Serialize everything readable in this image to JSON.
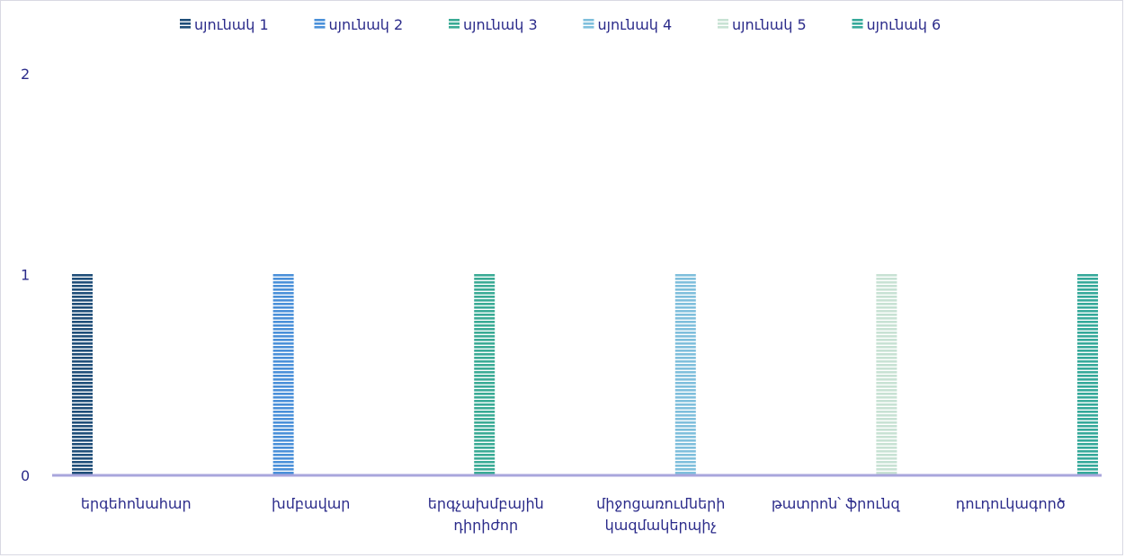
{
  "chart_data": {
    "type": "bar",
    "categories": [
      [
        "երգեհոնահար"
      ],
      [
        "խմբավար"
      ],
      [
        "երգչախմբային",
        "դիրիժոր"
      ],
      [
        "միջոցառումների",
        "կազմակերպիչ"
      ],
      [
        "թատրոն՝ ֆրունզ"
      ],
      [
        "դուդուկագործ"
      ]
    ],
    "series": [
      {
        "name": "սյունակ 1",
        "values": [
          1,
          0,
          0,
          0,
          0,
          0
        ],
        "color": "#1f4e79"
      },
      {
        "name": "սյունակ 2",
        "values": [
          0,
          1,
          0,
          0,
          0,
          0
        ],
        "color": "#4a90d9"
      },
      {
        "name": "սյունակ 3",
        "values": [
          0,
          0,
          1,
          0,
          0,
          0
        ],
        "color": "#3aab95"
      },
      {
        "name": "սյունակ 4",
        "values": [
          0,
          0,
          0,
          1,
          0,
          0
        ],
        "color": "#7fbfdc"
      },
      {
        "name": "սյունակ 5",
        "values": [
          0,
          0,
          0,
          0,
          1,
          0
        ],
        "color": "#c8e2d4"
      },
      {
        "name": "սյունակ 6",
        "values": [
          0,
          0,
          0,
          0,
          0,
          1
        ],
        "color": "#35a99a"
      }
    ],
    "ylim": [
      0,
      2
    ],
    "yticks": [
      "0",
      "1",
      "2"
    ],
    "legend_position": "top",
    "grid": false,
    "axis_color": "#a9a6dc",
    "text_color": "#2b2b8a"
  }
}
